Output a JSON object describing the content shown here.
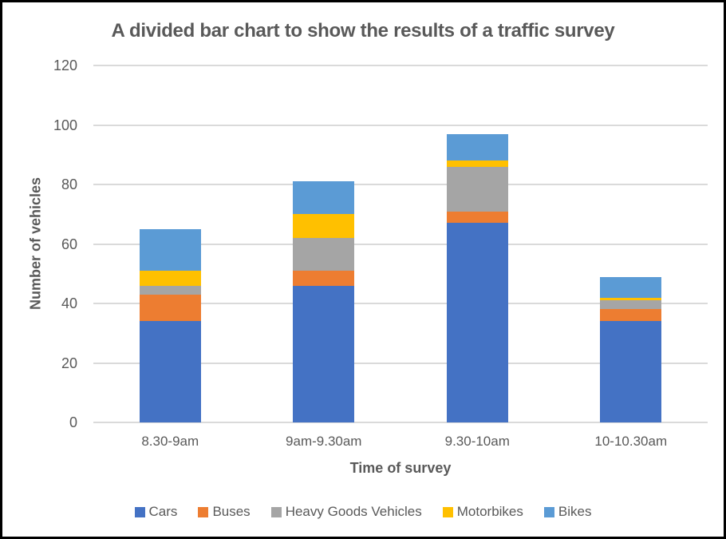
{
  "chart_data": {
    "type": "bar",
    "stacked": true,
    "title": "A divided bar chart to show the results of a traffic survey",
    "xlabel": "Time of survey",
    "ylabel": "Number of vehicles",
    "ylim": [
      0,
      120
    ],
    "yticks": [
      0,
      20,
      40,
      60,
      80,
      100,
      120
    ],
    "grid": true,
    "legend_position": "bottom",
    "categories": [
      "8.30-9am",
      "9am-9.30am",
      "9.30-10am",
      "10-10.30am"
    ],
    "series": [
      {
        "name": "Cars",
        "color": "#4472C4",
        "values": [
          34,
          46,
          67,
          34
        ]
      },
      {
        "name": "Buses",
        "color": "#ED7D31",
        "values": [
          9,
          5,
          4,
          4
        ]
      },
      {
        "name": "Heavy Goods Vehicles",
        "color": "#A5A5A5",
        "values": [
          3,
          11,
          15,
          3
        ]
      },
      {
        "name": "Motorbikes",
        "color": "#FFC000",
        "values": [
          5,
          8,
          2,
          1
        ]
      },
      {
        "name": "Bikes",
        "color": "#5B9BD5",
        "values": [
          14,
          11,
          9,
          7
        ]
      }
    ]
  },
  "colors": {
    "title_text": "#595959",
    "axis_text": "#595959",
    "gridline": "#DADADA",
    "background": "#FFFFFF",
    "frame_border": "#000000"
  }
}
